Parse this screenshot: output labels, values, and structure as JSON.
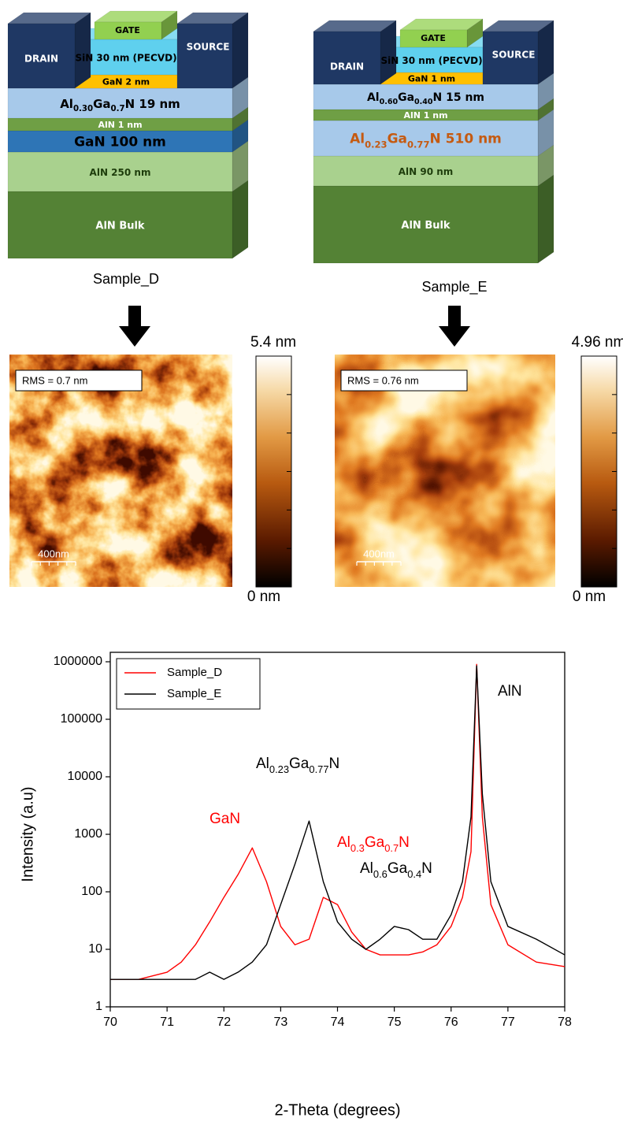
{
  "devices": [
    {
      "name": "Sample_D",
      "drain": "DRAIN",
      "source": "SOURCE",
      "gate": "GATE",
      "layers": [
        {
          "text": [
            "SiN 30 nm (PECVD)"
          ],
          "color": "#5fd0ee",
          "text_color": "#000000"
        },
        {
          "text": [
            "GaN 2 nm"
          ],
          "color": "#ffc000",
          "text_color": "#000000"
        },
        {
          "text": [
            "Al",
            "0.30",
            "Ga",
            "0.7",
            "N 19 nm"
          ],
          "color": "#a7c9ea",
          "text_color": "#000000"
        },
        {
          "text": [
            "AlN 1 nm"
          ],
          "color": "#6f9f45",
          "text_color": "#ffffff"
        },
        {
          "text": [
            "GaN 100 nm"
          ],
          "color": "#2e75b6",
          "text_color": "#000000"
        },
        {
          "text": [
            "AlN 250 nm"
          ],
          "color": "#a9d18e",
          "text_color": "#1e3d0c"
        },
        {
          "text": [
            "AlN Bulk"
          ],
          "color": "#548235",
          "text_color": "#ffffff"
        }
      ]
    },
    {
      "name": "Sample_E",
      "drain": "DRAIN",
      "source": "SOURCE",
      "gate": "GATE",
      "layers": [
        {
          "text": [
            "SiN 30 nm (PECVD)"
          ],
          "color": "#5fd0ee",
          "text_color": "#000000"
        },
        {
          "text": [
            "GaN 1 nm"
          ],
          "color": "#ffc000",
          "text_color": "#000000"
        },
        {
          "text": [
            "Al",
            "0.60",
            "Ga",
            "0.40",
            "N 15 nm"
          ],
          "color": "#a7c9ea",
          "text_color": "#000000"
        },
        {
          "text": [
            "AlN 1 nm"
          ],
          "color": "#6f9f45",
          "text_color": "#ffffff"
        },
        {
          "text": [
            "Al",
            "0.23",
            "Ga",
            "0.77",
            "N 510 nm"
          ],
          "color": "#a7c9ea",
          "text_color": "#c55a11"
        },
        {
          "text": [
            "AlN 90 nm"
          ],
          "color": "#a9d18e",
          "text_color": "#1e3d0c"
        },
        {
          "text": [
            "AlN Bulk"
          ],
          "color": "#548235",
          "text_color": "#ffffff"
        }
      ]
    }
  ],
  "afm": [
    {
      "rms": "RMS = 0.7 nm",
      "scale": "400nm",
      "max": "5.4 nm",
      "min": "0 nm"
    },
    {
      "rms": "RMS = 0.76 nm",
      "scale": "400nm",
      "max": "4.96 nm",
      "min": "0 nm"
    }
  ],
  "chart_data": {
    "type": "line",
    "x_label": "2-Theta (degrees)",
    "y_label": "Intensity (a.u)",
    "x": [
      70,
      70.5,
      71,
      71.25,
      71.5,
      71.75,
      72,
      72.25,
      72.5,
      72.75,
      73,
      73.25,
      73.5,
      73.75,
      74,
      74.25,
      74.5,
      74.75,
      75,
      75.25,
      75.5,
      75.75,
      76,
      76.2,
      76.35,
      76.45,
      76.55,
      76.7,
      77,
      77.5,
      78
    ],
    "series": [
      {
        "name": "Sample_D",
        "color": "#ff0000",
        "values": [
          3,
          3,
          4,
          6,
          12,
          30,
          80,
          200,
          580,
          150,
          25,
          12,
          15,
          80,
          60,
          20,
          10,
          8,
          8,
          8,
          9,
          12,
          25,
          80,
          500,
          900000,
          2000,
          60,
          12,
          6,
          5
        ]
      },
      {
        "name": "Sample_E",
        "color": "#000000",
        "values": [
          3,
          3,
          3,
          3,
          3,
          4,
          3,
          4,
          6,
          12,
          60,
          300,
          1700,
          150,
          30,
          15,
          10,
          15,
          25,
          22,
          15,
          15,
          40,
          150,
          2000,
          850000,
          5000,
          150,
          25,
          15,
          8
        ]
      }
    ],
    "annotations": [
      {
        "text": [
          "GaN"
        ],
        "color": "#ff0000"
      },
      {
        "text": [
          "Al",
          "0.23",
          "Ga",
          "0.77",
          "N"
        ],
        "color": "#000000"
      },
      {
        "text": [
          "Al",
          "0.3",
          "Ga",
          "0.7",
          "N"
        ],
        "color": "#ff0000"
      },
      {
        "text": [
          "Al",
          "0.6",
          "Ga",
          "0.4",
          "N"
        ],
        "color": "#000000"
      },
      {
        "text": [
          "AlN"
        ],
        "color": "#000000"
      }
    ],
    "xlim": [
      70,
      78
    ],
    "ylim": [
      1,
      1000000
    ],
    "xticks": [
      70,
      71,
      72,
      73,
      74,
      75,
      76,
      77,
      78
    ],
    "yticks": [
      1,
      10,
      100,
      1000,
      10000,
      100000,
      1000000
    ],
    "log_y": true,
    "grid": false,
    "legend": "upper-left"
  }
}
